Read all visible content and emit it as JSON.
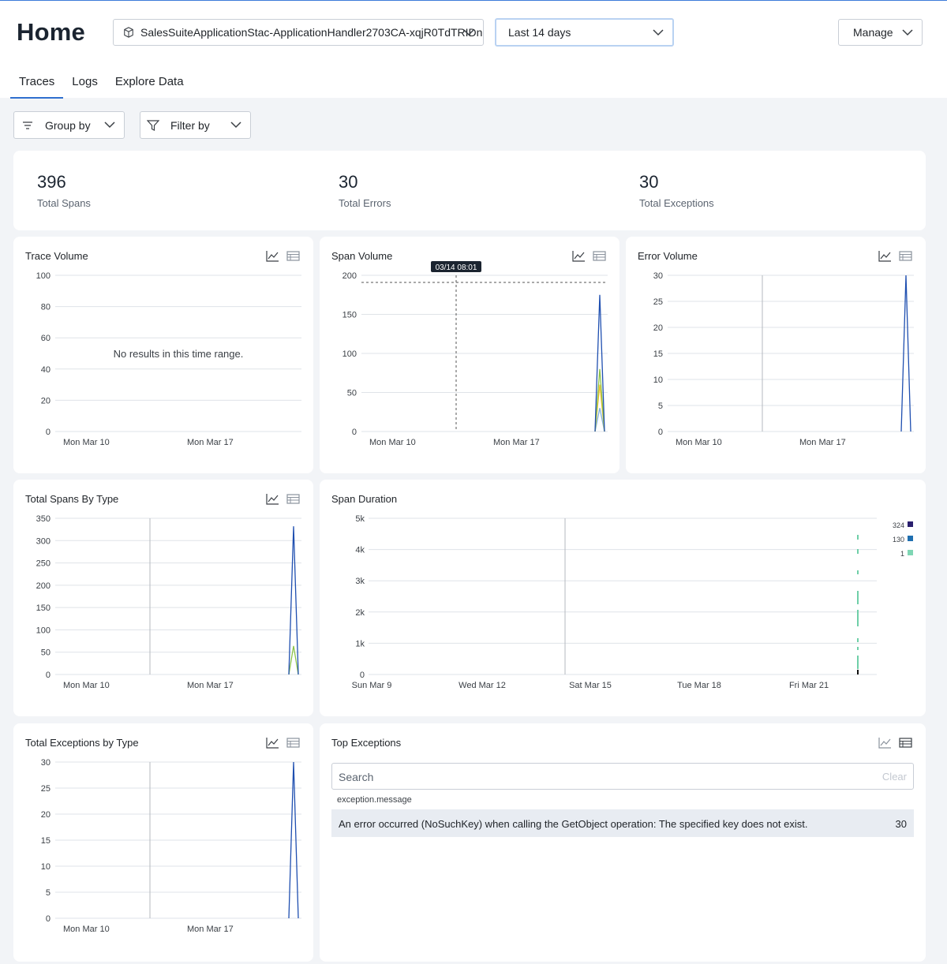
{
  "header": {
    "title": "Home",
    "application": "SalesSuiteApplicationStac-ApplicationHandler2703CA-xqjR0TdTRIDn",
    "date_range": "Last 14 days",
    "manage_label": "Manage"
  },
  "tabs": [
    {
      "label": "Traces",
      "active": true
    },
    {
      "label": "Logs",
      "active": false
    },
    {
      "label": "Explore Data",
      "active": false
    }
  ],
  "toolbar": {
    "group_by": "Group by",
    "filter_by": "Filter by"
  },
  "summary": {
    "spans": {
      "value": "396",
      "label": "Total Spans"
    },
    "errors": {
      "value": "30",
      "label": "Total Errors"
    },
    "exceptions": {
      "value": "30",
      "label": "Total Exceptions"
    }
  },
  "panels": {
    "trace_volume": {
      "title": "Trace Volume",
      "empty_message": "No results in this time range."
    },
    "span_volume": {
      "title": "Span Volume",
      "tooltip": "03/14 08:01"
    },
    "error_volume": {
      "title": "Error Volume"
    },
    "spans_by_type": {
      "title": "Total Spans By Type"
    },
    "span_duration": {
      "title": "Span Duration"
    },
    "exceptions_by_type": {
      "title": "Total Exceptions by Type"
    },
    "top_exceptions": {
      "title": "Top Exceptions",
      "search_placeholder": "Search",
      "clear_label": "Clear",
      "column_header": "exception.message",
      "rows": [
        {
          "message": "An error occurred (NoSuchKey) when calling the GetObject operation: The specified key does not exist.",
          "count": "30"
        }
      ]
    }
  },
  "colors": {
    "series_blue": "#1f4fb0",
    "series_green": "#8bc34a",
    "series_yellow": "#f2c12e",
    "series_light_blue": "#7fb0e0",
    "accent": "#2f6fcf"
  },
  "chart_data": [
    {
      "type": "line",
      "title": "Trace Volume",
      "xlabel": "",
      "ylabel": "",
      "y_ticks": [
        "100",
        "80",
        "60",
        "40",
        "20",
        "0"
      ],
      "x_ticks": [
        "Mon Mar 10",
        "Mon Mar 17"
      ],
      "ylim": [
        0,
        100
      ],
      "series": []
    },
    {
      "type": "line",
      "title": "Span Volume",
      "y_ticks": [
        "200",
        "150",
        "100",
        "50",
        "0"
      ],
      "x_ticks": [
        "Mon Mar 10",
        "Mon Mar 17"
      ],
      "ylim": [
        0,
        200
      ],
      "series": [
        {
          "values": [
            0,
            175,
            0
          ]
        },
        {
          "values": [
            0,
            80,
            0
          ]
        },
        {
          "values": [
            0,
            60,
            0
          ]
        },
        {
          "values": [
            0,
            30,
            0
          ]
        }
      ]
    },
    {
      "type": "line",
      "title": "Error Volume",
      "y_ticks": [
        "30",
        "25",
        "20",
        "15",
        "10",
        "5",
        "0"
      ],
      "x_ticks": [
        "Mon Mar 10",
        "Mon Mar 17"
      ],
      "ylim": [
        0,
        30
      ],
      "series": [
        {
          "values": [
            0,
            30,
            0
          ]
        }
      ]
    },
    {
      "type": "line",
      "title": "Total Spans By Type",
      "y_ticks": [
        "350",
        "300",
        "250",
        "200",
        "150",
        "100",
        "50",
        "0"
      ],
      "x_ticks": [
        "Mon Mar 10",
        "Mon Mar 17"
      ],
      "ylim": [
        0,
        350
      ],
      "series": [
        {
          "values": [
            0,
            332,
            0
          ]
        },
        {
          "values": [
            0,
            64,
            0
          ]
        }
      ]
    },
    {
      "type": "heatmap",
      "title": "Span Duration",
      "y_ticks": [
        "5k",
        "4k",
        "3k",
        "2k",
        "1k",
        "0"
      ],
      "x_ticks": [
        "Sun Mar 9",
        "Wed Mar 12",
        "Sat Mar 15",
        "Tue Mar 18",
        "Fri Mar 21"
      ],
      "ylim": [
        0,
        5000
      ],
      "legend": [
        "324",
        "130",
        "1"
      ]
    },
    {
      "type": "line",
      "title": "Total Exceptions by Type",
      "y_ticks": [
        "30",
        "25",
        "20",
        "15",
        "10",
        "5",
        "0"
      ],
      "x_ticks": [
        "Mon Mar 10",
        "Mon Mar 17"
      ],
      "ylim": [
        0,
        30
      ],
      "series": [
        {
          "values": [
            0,
            30,
            0
          ]
        }
      ]
    }
  ]
}
